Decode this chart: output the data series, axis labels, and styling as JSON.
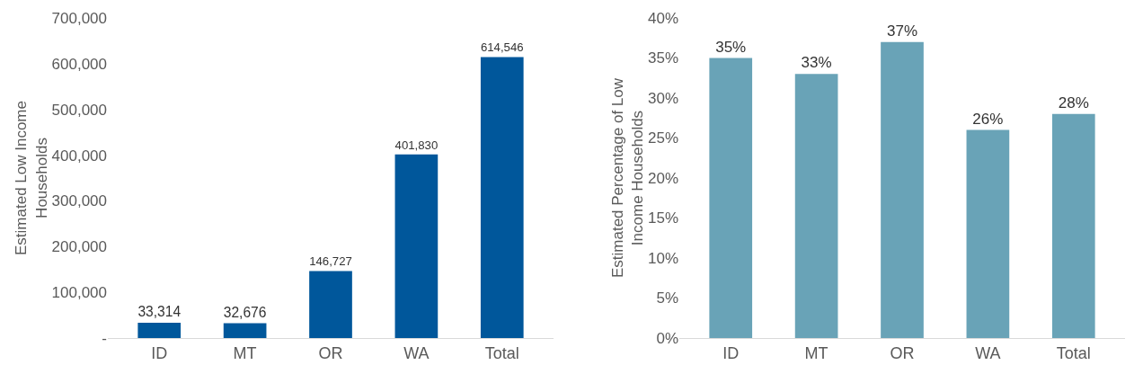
{
  "chart_data": [
    {
      "type": "bar",
      "ylabel": "Estimated Low Income\nHouseholds",
      "categories": [
        "ID",
        "MT",
        "OR",
        "WA",
        "Total"
      ],
      "values": [
        33314,
        32676,
        146727,
        401830,
        614546
      ],
      "value_labels": [
        "33,314",
        "32,676",
        "146,727",
        "401,830",
        "614,546"
      ],
      "color": "#00579b",
      "ylim": [
        0,
        700000
      ],
      "yticks": [
        {
          "value": 0,
          "label": "-"
        },
        {
          "value": 100000,
          "label": "100,000"
        },
        {
          "value": 200000,
          "label": "200,000"
        },
        {
          "value": 300000,
          "label": "300,000"
        },
        {
          "value": 400000,
          "label": "400,000"
        },
        {
          "value": 500000,
          "label": "500,000"
        },
        {
          "value": 600000,
          "label": "600,000"
        },
        {
          "value": 700000,
          "label": "700,000"
        }
      ],
      "grid": false,
      "legend": false
    },
    {
      "type": "bar",
      "ylabel": "Estimated Percentage of Low\nIncome Households",
      "categories": [
        "ID",
        "MT",
        "OR",
        "WA",
        "Total"
      ],
      "values": [
        35,
        33,
        37,
        26,
        28
      ],
      "value_labels": [
        "35%",
        "33%",
        "37%",
        "26%",
        "28%"
      ],
      "color": "#69a3b7",
      "ylim": [
        0,
        40
      ],
      "yticks": [
        {
          "value": 0,
          "label": "0%"
        },
        {
          "value": 5,
          "label": "5%"
        },
        {
          "value": 10,
          "label": "10%"
        },
        {
          "value": 15,
          "label": "15%"
        },
        {
          "value": 20,
          "label": "20%"
        },
        {
          "value": 25,
          "label": "25%"
        },
        {
          "value": 30,
          "label": "30%"
        },
        {
          "value": 35,
          "label": "35%"
        },
        {
          "value": 40,
          "label": "40%"
        }
      ],
      "grid": false,
      "legend": false
    }
  ]
}
